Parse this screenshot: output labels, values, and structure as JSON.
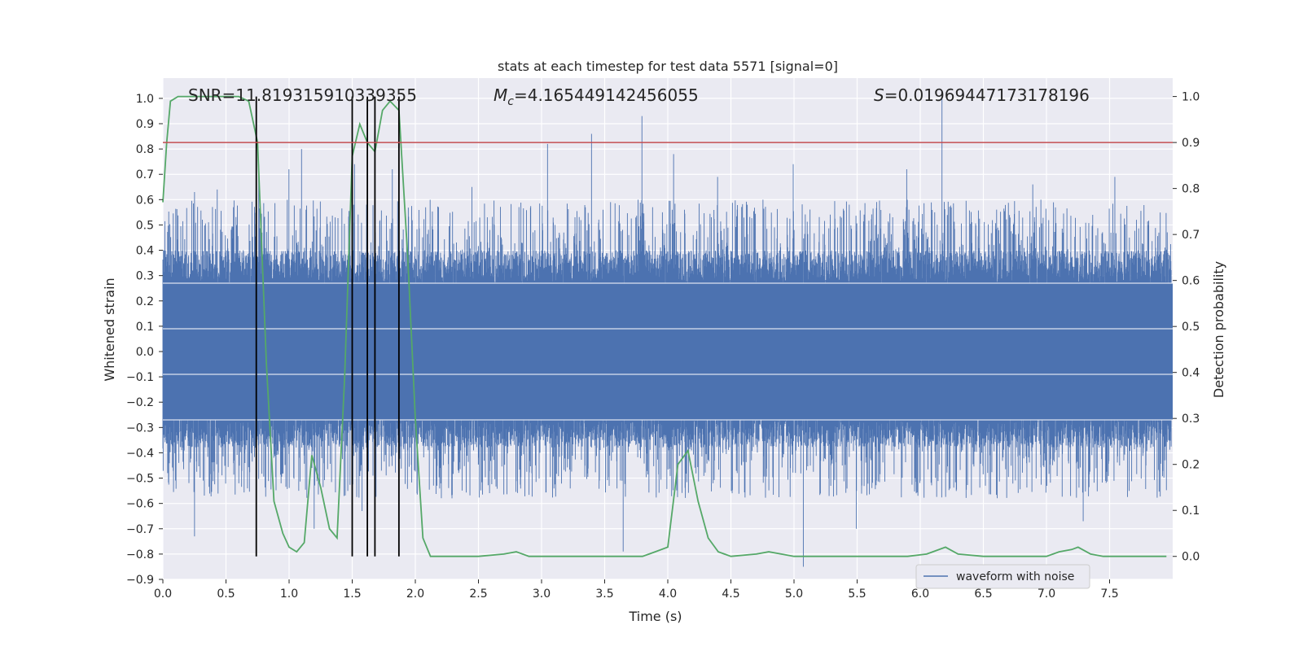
{
  "chart_data": {
    "type": "line",
    "title": "stats at each timestep for test data 5571 [signal=0]",
    "xlabel": "Time (s)",
    "ylabel_left": "Whitened strain",
    "ylabel_right": "Detection probability",
    "xlim": [
      0.0,
      8.0
    ],
    "ylim_left": [
      -0.9,
      1.08
    ],
    "ylim_right": [
      -0.05,
      1.04
    ],
    "x_ticks": [
      "0.0",
      "0.5",
      "1.0",
      "1.5",
      "2.0",
      "2.5",
      "3.0",
      "3.5",
      "4.0",
      "4.5",
      "5.0",
      "5.5",
      "6.0",
      "6.5",
      "7.0",
      "7.5"
    ],
    "y_ticks_left": [
      "−0.9",
      "−0.8",
      "−0.7",
      "−0.6",
      "−0.5",
      "−0.4",
      "−0.3",
      "−0.2",
      "−0.1",
      "0.0",
      "0.1",
      "0.2",
      "0.3",
      "0.4",
      "0.5",
      "0.6",
      "0.7",
      "0.8",
      "0.9",
      "1.0"
    ],
    "y_ticks_right": [
      "0.0",
      "0.1",
      "0.2",
      "0.3",
      "0.4",
      "0.5",
      "0.6",
      "0.7",
      "0.8",
      "0.9",
      "1.0"
    ],
    "grid": true,
    "annotations": {
      "snr": "SNR=11.819315910339355",
      "mc_symbol": "M",
      "mc_sub": "c",
      "mc_value": "=4.165449142456055",
      "s_symbol": "S",
      "s_value": "=0.019694471731781​96"
    },
    "legend": {
      "label": "waveform with noise",
      "placement": "lower-right"
    },
    "threshold_line": {
      "probability": 0.9,
      "color": "#c44e52"
    },
    "vertical_markers": [
      0.74,
      1.5,
      1.62,
      1.68,
      1.87
    ],
    "series": [
      {
        "name": "waveform with noise",
        "axis": "left",
        "color": "#4c72b0",
        "kind": "noise-envelope",
        "peaks": [
          [
            0.25,
            0.63
          ],
          [
            0.43,
            0.64
          ],
          [
            0.76,
            0.74
          ],
          [
            1.0,
            0.72
          ],
          [
            1.1,
            0.8
          ],
          [
            1.52,
            0.74
          ],
          [
            1.82,
            0.72
          ],
          [
            2.45,
            0.65
          ],
          [
            3.05,
            0.82
          ],
          [
            3.4,
            0.86
          ],
          [
            3.8,
            0.93
          ],
          [
            4.05,
            0.78
          ],
          [
            4.4,
            0.69
          ],
          [
            5.0,
            0.74
          ],
          [
            5.9,
            0.72
          ],
          [
            6.18,
            1.0
          ],
          [
            6.9,
            0.66
          ],
          [
            7.55,
            0.69
          ]
        ],
        "troughs": [
          [
            0.25,
            -0.73
          ],
          [
            1.2,
            -0.7
          ],
          [
            1.58,
            -0.63
          ],
          [
            3.65,
            -0.79
          ],
          [
            5.08,
            -0.85
          ],
          [
            5.5,
            -0.7
          ],
          [
            7.3,
            -0.67
          ]
        ]
      },
      {
        "name": "",
        "axis": "right",
        "color": "#55a868",
        "x": [
          0.0,
          0.03,
          0.06,
          0.12,
          0.2,
          0.4,
          0.6,
          0.68,
          0.75,
          0.82,
          0.88,
          0.95,
          1.0,
          1.06,
          1.12,
          1.18,
          1.25,
          1.32,
          1.38,
          1.44,
          1.5,
          1.56,
          1.62,
          1.68,
          1.74,
          1.8,
          1.87,
          1.94,
          2.0,
          2.06,
          2.12,
          2.2,
          2.3,
          2.5,
          2.7,
          2.8,
          2.9,
          3.0,
          3.2,
          3.5,
          3.8,
          3.9,
          4.0,
          4.08,
          4.16,
          4.24,
          4.32,
          4.4,
          4.5,
          4.7,
          4.8,
          4.9,
          5.0,
          5.3,
          5.6,
          5.9,
          6.05,
          6.2,
          6.3,
          6.5,
          6.8,
          7.0,
          7.1,
          7.2,
          7.25,
          7.35,
          7.45,
          7.6,
          7.95
        ],
        "y": [
          0.77,
          0.9,
          0.99,
          1.0,
          1.0,
          1.0,
          1.0,
          0.99,
          0.9,
          0.42,
          0.12,
          0.05,
          0.02,
          0.01,
          0.03,
          0.22,
          0.15,
          0.06,
          0.04,
          0.39,
          0.87,
          0.94,
          0.9,
          0.88,
          0.97,
          0.99,
          0.97,
          0.65,
          0.3,
          0.04,
          0.0,
          0.0,
          0.0,
          0.0,
          0.005,
          0.01,
          0.0,
          0.0,
          0.0,
          0.0,
          0.0,
          0.01,
          0.02,
          0.2,
          0.23,
          0.12,
          0.04,
          0.01,
          0.0,
          0.005,
          0.01,
          0.005,
          0.0,
          0.0,
          0.0,
          0.0,
          0.005,
          0.02,
          0.005,
          0.0,
          0.0,
          0.0,
          0.01,
          0.015,
          0.02,
          0.005,
          0.0,
          0.0,
          0.0
        ]
      }
    ]
  }
}
